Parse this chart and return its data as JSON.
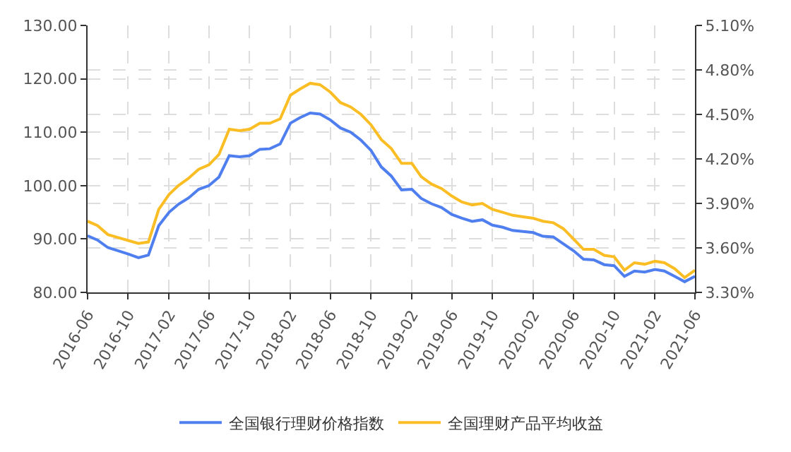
{
  "chart_data": {
    "type": "line",
    "x": [
      "2016-06",
      "2016-07",
      "2016-08",
      "2016-09",
      "2016-10",
      "2016-11",
      "2016-12",
      "2017-01",
      "2017-02",
      "2017-03",
      "2017-04",
      "2017-05",
      "2017-06",
      "2017-07",
      "2017-08",
      "2017-09",
      "2017-10",
      "2017-11",
      "2017-12",
      "2018-01",
      "2018-02",
      "2018-03",
      "2018-04",
      "2018-05",
      "2018-06",
      "2018-07",
      "2018-08",
      "2018-09",
      "2018-10",
      "2018-11",
      "2018-12",
      "2019-01",
      "2019-02",
      "2019-03",
      "2019-04",
      "2019-05",
      "2019-06",
      "2019-07",
      "2019-08",
      "2019-09",
      "2019-10",
      "2019-11",
      "2019-12",
      "2020-01",
      "2020-02",
      "2020-03",
      "2020-04",
      "2020-05",
      "2020-06",
      "2020-07",
      "2020-08",
      "2020-09",
      "2020-10",
      "2020-11",
      "2020-12",
      "2021-01",
      "2021-02",
      "2021-03",
      "2021-04",
      "2021-05",
      "2021-06"
    ],
    "series": [
      {
        "name": "全国银行理财价格指数",
        "color": "#4f7fef",
        "axis": "y",
        "values": [
          90.6,
          89.8,
          88.4,
          87.8,
          87.2,
          86.5,
          87.0,
          92.5,
          95.0,
          96.5,
          97.7,
          99.3,
          100.0,
          101.6,
          105.6,
          105.4,
          105.6,
          106.8,
          106.9,
          107.8,
          111.7,
          112.7,
          113.6,
          113.4,
          112.3,
          110.8,
          110.0,
          108.5,
          106.6,
          103.5,
          101.8,
          99.2,
          99.3,
          97.6,
          96.6,
          95.9,
          94.6,
          93.9,
          93.3,
          93.6,
          92.6,
          92.2,
          91.6,
          91.4,
          91.2,
          90.5,
          90.4,
          89.1,
          87.8,
          86.2,
          86.1,
          85.2,
          85.0,
          83.0,
          84.0,
          83.8,
          84.3,
          84.0,
          83.0,
          82.0,
          83.0
        ]
      },
      {
        "name": "全国理财产品平均收益",
        "color": "#fbbd24",
        "axis": "y2",
        "values": [
          3.78,
          3.75,
          3.69,
          3.67,
          3.65,
          3.63,
          3.64,
          3.86,
          3.96,
          4.02,
          4.07,
          4.13,
          4.16,
          4.23,
          4.4,
          4.39,
          4.4,
          4.44,
          4.44,
          4.47,
          4.63,
          4.67,
          4.71,
          4.7,
          4.65,
          4.58,
          4.55,
          4.5,
          4.43,
          4.33,
          4.27,
          4.17,
          4.17,
          4.08,
          4.03,
          4.0,
          3.95,
          3.91,
          3.89,
          3.9,
          3.86,
          3.84,
          3.82,
          3.81,
          3.8,
          3.78,
          3.77,
          3.73,
          3.66,
          3.59,
          3.59,
          3.55,
          3.54,
          3.45,
          3.5,
          3.49,
          3.51,
          3.5,
          3.46,
          3.4,
          3.45
        ]
      }
    ],
    "xlim": [
      "2016-06",
      "2021-06"
    ],
    "xticks": [
      "2016-06",
      "2016-10",
      "2017-02",
      "2017-06",
      "2017-10",
      "2018-02",
      "2018-06",
      "2018-10",
      "2019-02",
      "2019-06",
      "2019-10",
      "2020-02",
      "2020-06",
      "2020-10",
      "2021-02",
      "2021-06"
    ],
    "ylim": [
      80,
      130
    ],
    "yticks": [
      {
        "value": 80,
        "label": "80.00"
      },
      {
        "value": 90,
        "label": "90.00"
      },
      {
        "value": 100,
        "label": "100.00"
      },
      {
        "value": 110,
        "label": "110.00"
      },
      {
        "value": 120,
        "label": "120.00"
      },
      {
        "value": 130,
        "label": "130.00"
      }
    ],
    "y2lim": [
      3.3,
      5.1
    ],
    "y2ticks": [
      {
        "value": 3.3,
        "label": "3.30%"
      },
      {
        "value": 3.6,
        "label": "3.60%"
      },
      {
        "value": 3.9,
        "label": "3.90%"
      },
      {
        "value": 4.2,
        "label": "4.20%"
      },
      {
        "value": 4.5,
        "label": "4.50%"
      },
      {
        "value": 4.8,
        "label": "4.80%"
      },
      {
        "value": 5.1,
        "label": "5.10%"
      }
    ],
    "grid": true,
    "legend": "bottom",
    "marker": "none",
    "line_style": "solid"
  }
}
